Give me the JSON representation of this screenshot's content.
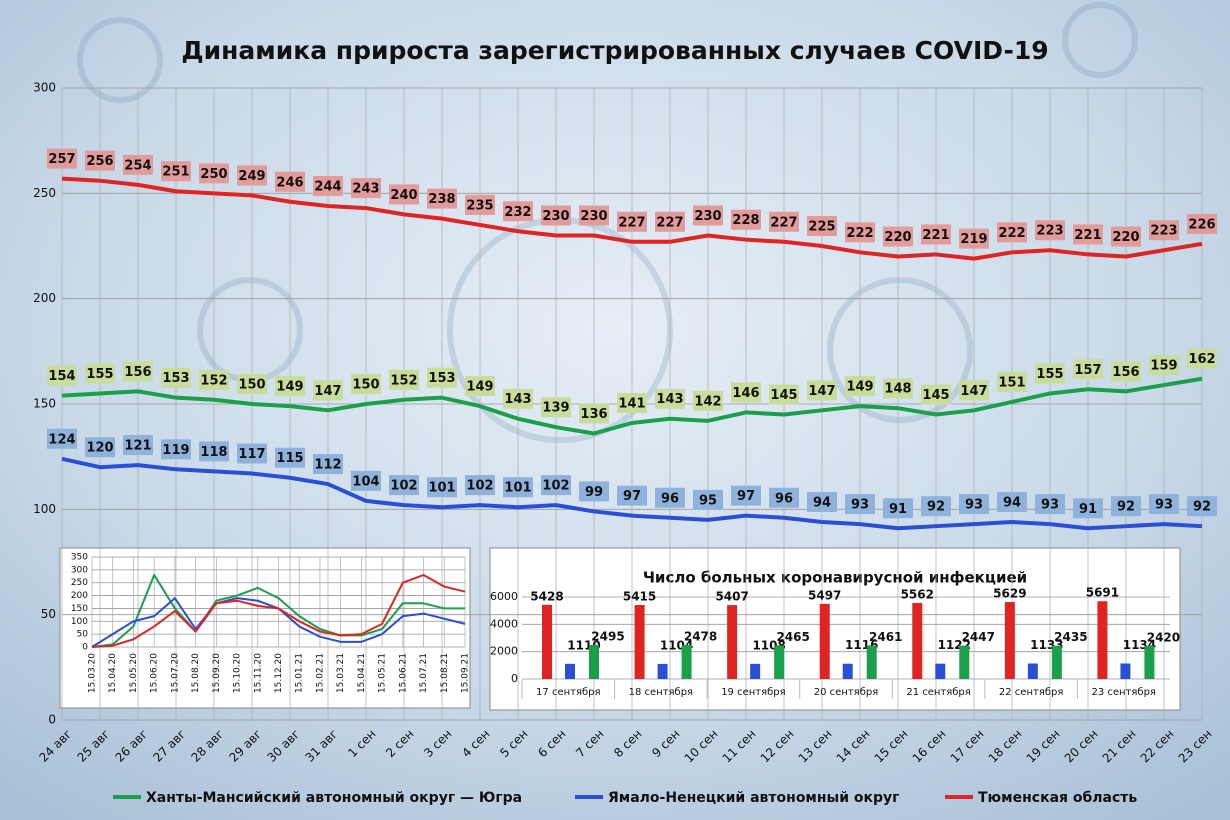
{
  "chart_data": [
    {
      "type": "line",
      "title": "Динамика прироста зарегистрированных случаев COVID-19",
      "categories": [
        "24 авг",
        "25 авг",
        "26 авг",
        "27 авг",
        "28 авг",
        "29 авг",
        "30 авг",
        "31 авг",
        "1 сен",
        "2 сен",
        "3 сен",
        "4 сен",
        "5 сен",
        "6 сен",
        "7 сен",
        "8 сен",
        "9 сен",
        "10 сен",
        "11 сен",
        "12 сен",
        "13 сен",
        "14 сен",
        "15 сен",
        "16 сен",
        "17 сен",
        "18 сен",
        "19 сен",
        "20 сен",
        "21 сен",
        "22 сен",
        "23 сен"
      ],
      "series": [
        {
          "name": "Ханты-Мансийский автономный округ — Югра",
          "color": "#1aa04a",
          "label_fill": "#c8dc9c",
          "values": [
            154,
            155,
            156,
            153,
            152,
            150,
            149,
            147,
            150,
            152,
            153,
            149,
            143,
            139,
            136,
            141,
            143,
            142,
            146,
            145,
            147,
            149,
            148,
            145,
            147,
            151,
            155,
            157,
            156,
            159,
            162
          ]
        },
        {
          "name": "Ямало-Ненецкий автономный округ",
          "color": "#2a4fd6",
          "label_fill": "#8fb2dc",
          "values": [
            124,
            120,
            121,
            119,
            118,
            117,
            115,
            112,
            104,
            102,
            101,
            102,
            101,
            102,
            99,
            97,
            96,
            95,
            97,
            96,
            94,
            93,
            91,
            92,
            93,
            94,
            93,
            91,
            92,
            93,
            92
          ]
        },
        {
          "name": "Тюменская область",
          "color": "#e02424",
          "label_fill": "#e39a9a",
          "values": [
            257,
            256,
            254,
            251,
            250,
            249,
            246,
            244,
            243,
            240,
            238,
            235,
            232,
            230,
            230,
            227,
            227,
            230,
            228,
            227,
            225,
            222,
            220,
            221,
            219,
            222,
            223,
            221,
            220,
            223,
            226
          ]
        }
      ],
      "ylim": [
        0,
        300
      ],
      "yticks": [
        0,
        50,
        100,
        150,
        200,
        250,
        300
      ],
      "grid": true,
      "legend": "bottom",
      "data_labels": true
    },
    {
      "type": "line",
      "categories": [
        "15.03.20",
        "15.04.20",
        "15.05.20",
        "15.06.20",
        "15.07.20",
        "15.08.20",
        "15.09.20",
        "15.10.20",
        "15.11.20",
        "15.12.20",
        "15.01.21",
        "15.02.21",
        "15.03.21",
        "15.04.21",
        "15.05.21",
        "15.06.21",
        "15.07.21",
        "15.08.21",
        "15.09.21"
      ],
      "series": [
        {
          "color": "#1aa04a",
          "values": [
            0,
            10,
            80,
            280,
            150,
            60,
            180,
            200,
            230,
            190,
            120,
            70,
            45,
            45,
            70,
            170,
            170,
            150,
            150
          ]
        },
        {
          "color": "#2a4fd6",
          "values": [
            0,
            50,
            100,
            120,
            190,
            70,
            170,
            190,
            180,
            150,
            80,
            40,
            20,
            20,
            50,
            120,
            130,
            110,
            90
          ]
        },
        {
          "color": "#e02424",
          "values": [
            0,
            5,
            30,
            80,
            140,
            60,
            170,
            180,
            160,
            150,
            100,
            60,
            45,
            50,
            90,
            250,
            280,
            235,
            215
          ]
        }
      ],
      "ylim": [
        0,
        350
      ],
      "yticks": [
        0,
        50,
        100,
        150,
        200,
        250,
        300,
        350
      ],
      "grid": true
    },
    {
      "type": "bar",
      "title": "Число больных коронавирусной  инфекцией",
      "categories": [
        "17 сентября",
        "18 сентября",
        "19 сентября",
        "20 сентября",
        "21 сентября",
        "22 сентября",
        "23 сентября"
      ],
      "series": [
        {
          "color": "#e02424",
          "values": [
            5428,
            5415,
            5407,
            5497,
            5562,
            5629,
            5691
          ]
        },
        {
          "color": "#2a4fd6",
          "values": [
            1110,
            1104,
            1108,
            1116,
            1122,
            1133,
            1134
          ]
        },
        {
          "color": "#1aa04a",
          "values": [
            2495,
            2478,
            2465,
            2461,
            2447,
            2435,
            2420
          ]
        }
      ],
      "ylim": [
        0,
        6000
      ],
      "yticks": [
        0,
        2000,
        4000,
        6000
      ],
      "grid": true,
      "data_labels": true
    }
  ]
}
